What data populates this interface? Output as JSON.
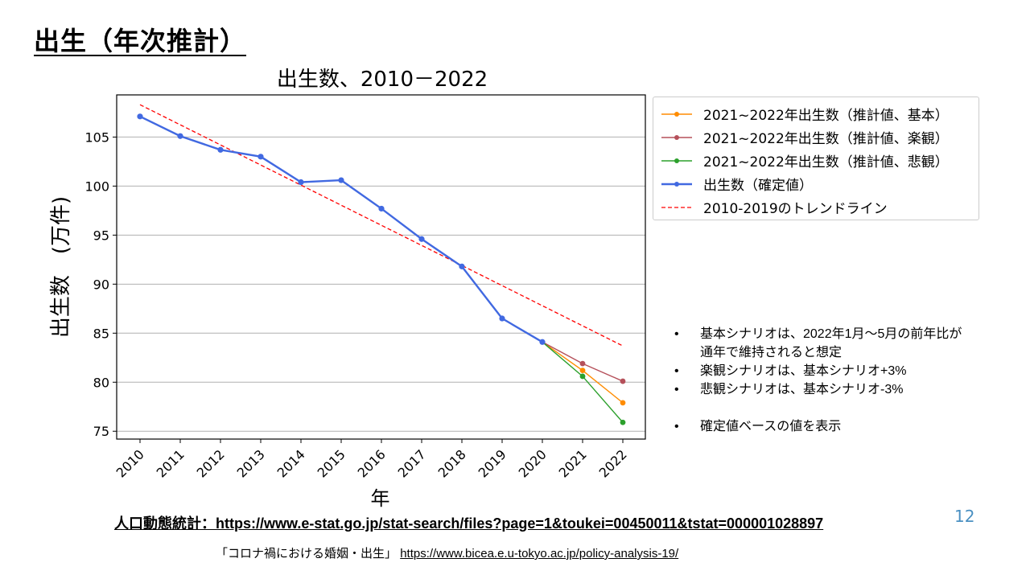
{
  "slide": {
    "title": "出生（年次推計）",
    "page_number": "12"
  },
  "chart_data": {
    "type": "line",
    "title": "出生数、2010－2022",
    "xlabel": "年",
    "ylabel": "出生数　(万件)",
    "x": [
      "2010",
      "2011",
      "2012",
      "2013",
      "2014",
      "2015",
      "2016",
      "2017",
      "2018",
      "2019",
      "2020",
      "2021",
      "2022"
    ],
    "ylim": [
      74.2,
      109.3
    ],
    "yticks": [
      75,
      80,
      85,
      90,
      95,
      100,
      105
    ],
    "grid": "horizontal",
    "legend_position": "outside-right-top",
    "series": [
      {
        "name": "2021~2022年出生数（推計値、基本）",
        "color": "#ff8c00",
        "x": [
          "2020",
          "2021",
          "2022"
        ],
        "values": [
          84.1,
          81.2,
          77.9
        ]
      },
      {
        "name": "2021~2022年出生数（推計値、楽観）",
        "color": "#b5505a",
        "x": [
          "2020",
          "2021",
          "2022"
        ],
        "values": [
          84.1,
          81.9,
          80.1
        ]
      },
      {
        "name": "2021~2022年出生数（推計値、悲観）",
        "color": "#2ca02c",
        "x": [
          "2020",
          "2021",
          "2022"
        ],
        "values": [
          84.1,
          80.6,
          75.9
        ]
      },
      {
        "name": "出生数（確定値）",
        "color": "#4169e1",
        "x": [
          "2010",
          "2011",
          "2012",
          "2013",
          "2014",
          "2015",
          "2016",
          "2017",
          "2018",
          "2019",
          "2020"
        ],
        "values": [
          107.1,
          105.1,
          103.7,
          103.0,
          100.4,
          100.6,
          97.7,
          94.6,
          91.8,
          86.5,
          84.1
        ]
      },
      {
        "name": "2010-2019のトレンドライン",
        "color": "#ff0000",
        "dashed": true,
        "x": [
          "2010",
          "2022"
        ],
        "values": [
          108.3,
          83.7
        ]
      }
    ]
  },
  "notes": [
    "基本シナリオは、2022年1月～5月の前年比が",
    "通年で維持されると想定",
    "楽観シナリオは、基本シナリオ+3%",
    "悲観シナリオは、基本シナリオ-3%",
    "確定値ベースの値を表示"
  ],
  "sources": {
    "main": "人口動態統計：https://www.e-stat.go.jp/stat-search/files?page=1&toukei=00450011&tstat=000001028897",
    "sub_label": "「コロナ禍における婚姻・出生」",
    "sub_link": "https://www.bicea.e.u-tokyo.ac.jp/policy-analysis-19/"
  }
}
